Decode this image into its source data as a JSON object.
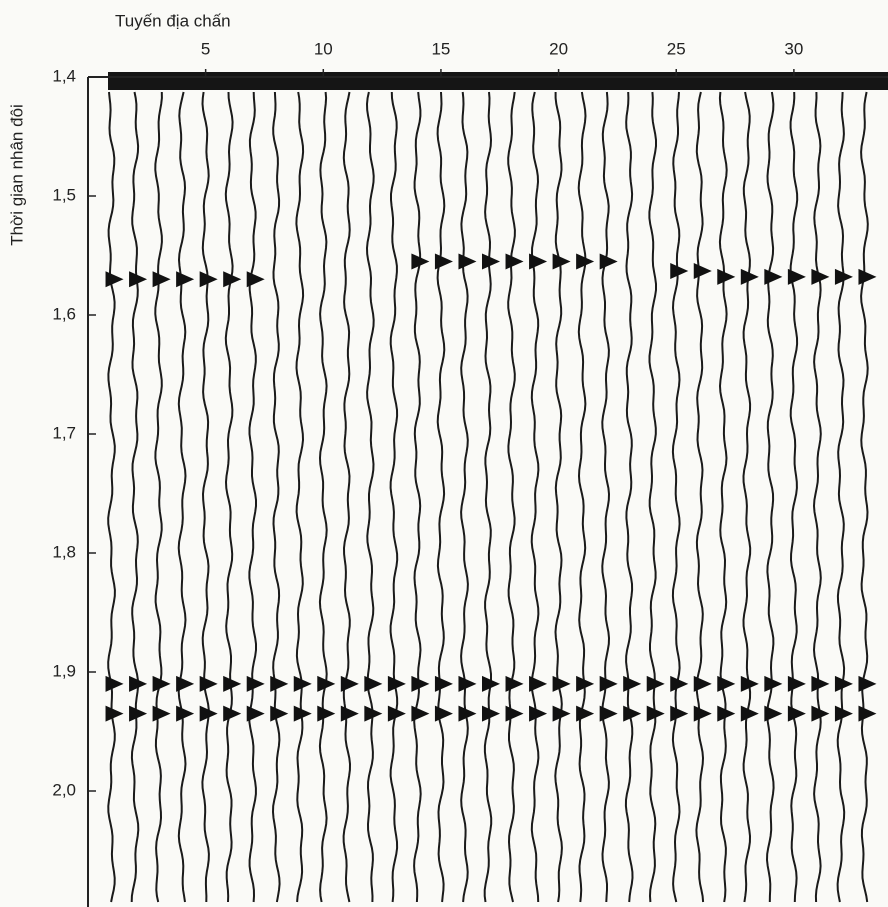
{
  "chart_data": {
    "type": "seismic",
    "title": "Tuyến địa chấn",
    "y_label": "Thời gian nhân đôi",
    "x": [
      1,
      2,
      3,
      4,
      5,
      6,
      7,
      8,
      9,
      10,
      11,
      12,
      13,
      14,
      15,
      16,
      17,
      18,
      19,
      20,
      21,
      22,
      23,
      24,
      25,
      26,
      27,
      28,
      29,
      30,
      31,
      32,
      33
    ],
    "series": [
      {
        "color": "#111111",
        "values": [
          1.57,
          1.57,
          1.57,
          1.57,
          1.57,
          1.57,
          1.57,
          null,
          null,
          null,
          null,
          null,
          null,
          1.555,
          1.555,
          1.555,
          1.555,
          1.555,
          1.555,
          1.555,
          1.555,
          1.555,
          null,
          null,
          1.563,
          1.563,
          1.568,
          1.568,
          1.568,
          1.568,
          1.568,
          1.568,
          1.568
        ]
      },
      {
        "color": "#111111",
        "values": [
          1.91,
          1.91,
          1.91,
          1.91,
          1.91,
          1.91,
          1.91,
          1.91,
          1.91,
          1.91,
          1.91,
          1.91,
          1.91,
          1.91,
          1.91,
          1.91,
          1.91,
          1.91,
          1.91,
          1.91,
          1.91,
          1.91,
          1.91,
          1.91,
          1.91,
          1.91,
          1.91,
          1.91,
          1.91,
          1.91,
          1.91,
          1.91,
          1.91
        ]
      },
      {
        "color": "#111111",
        "values": [
          1.935,
          1.935,
          1.935,
          1.935,
          1.935,
          1.935,
          1.935,
          1.935,
          1.935,
          1.935,
          1.935,
          1.935,
          1.935,
          1.935,
          1.935,
          1.935,
          1.935,
          1.935,
          1.935,
          1.935,
          1.935,
          1.935,
          1.935,
          1.935,
          1.935,
          1.935,
          1.935,
          1.935,
          1.935,
          1.935,
          1.935,
          1.935,
          1.935
        ]
      }
    ],
    "xlim": [
      0,
      34
    ],
    "xticks": [
      5,
      10,
      15,
      20,
      25,
      30
    ],
    "ylim": [
      1.4,
      2.1
    ],
    "yticks": [
      {
        "value": 1.4,
        "label": "1,4"
      },
      {
        "value": 1.5,
        "label": "1,5"
      },
      {
        "value": 1.6,
        "label": "1,6"
      },
      {
        "value": 1.7,
        "label": "1,7"
      },
      {
        "value": 1.8,
        "label": "1,8"
      },
      {
        "value": 1.9,
        "label": "1,9"
      },
      {
        "value": 2.0,
        "label": "2,0"
      }
    ]
  }
}
